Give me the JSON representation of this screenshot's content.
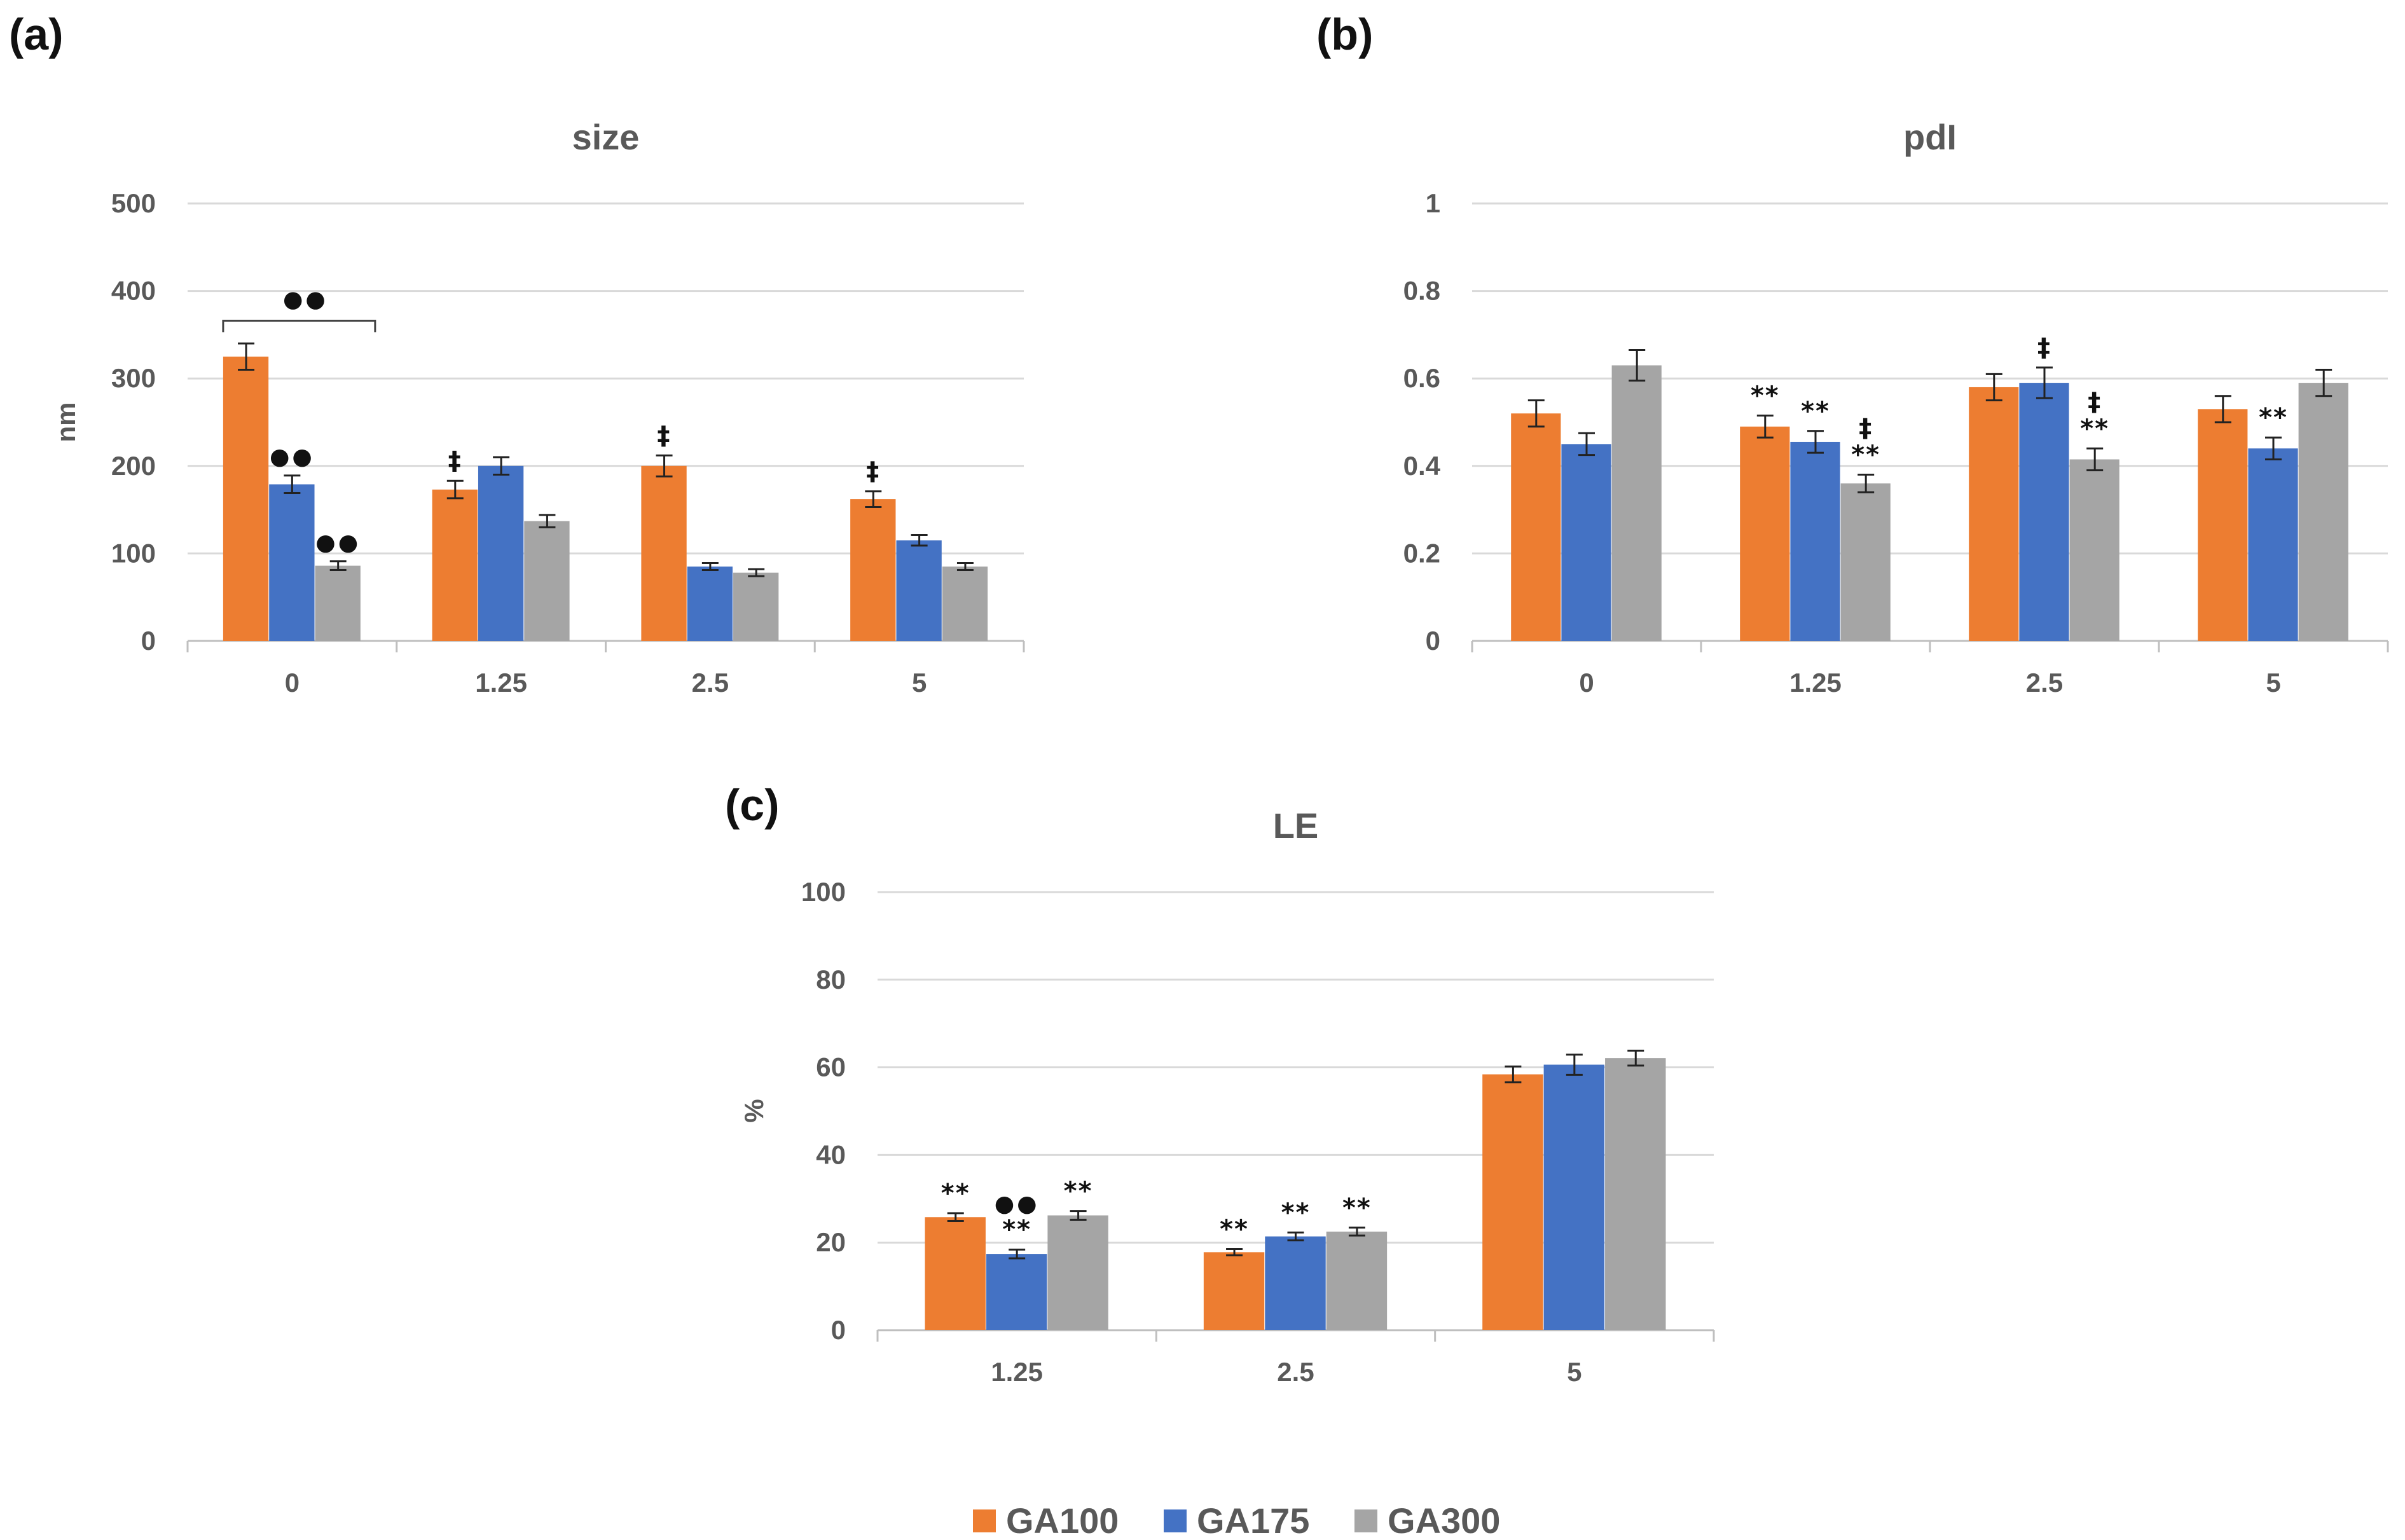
{
  "panels": [
    "(a)",
    "(b)",
    "(c)"
  ],
  "colors": {
    "GA100": "#ED7D31",
    "GA175": "#4472C4",
    "GA300": "#A5A5A5",
    "grid": "#D9D9D9",
    "text": "#595959"
  },
  "legend": [
    {
      "name": "GA100",
      "color": "#ED7D31"
    },
    {
      "name": "GA175",
      "color": "#4472C4"
    },
    {
      "name": "GA300",
      "color": "#A5A5A5"
    }
  ],
  "chart_data": [
    {
      "type": "bar",
      "title": "size",
      "ylabel": "nm",
      "xlabel": "",
      "ylim": [
        0,
        500
      ],
      "yticks": [
        "0",
        "100",
        "200",
        "300",
        "400",
        "500"
      ],
      "categories": [
        "0",
        "1.25",
        "2.5",
        "5"
      ],
      "series": [
        {
          "name": "GA100",
          "values": [
            325,
            173,
            200,
            162
          ],
          "errors": [
            15,
            10,
            12,
            9
          ]
        },
        {
          "name": "GA175",
          "values": [
            179,
            200,
            85,
            115
          ],
          "errors": [
            10,
            10,
            4,
            6
          ]
        },
        {
          "name": "GA300",
          "values": [
            86,
            137,
            78,
            85
          ],
          "errors": [
            5,
            7,
            4,
            4
          ]
        }
      ],
      "annotations": [
        {
          "category": 0,
          "series": 1,
          "text": "●●"
        },
        {
          "category": 0,
          "series": 2,
          "text": "●●"
        },
        {
          "category": 1,
          "series": 0,
          "text": "‡"
        },
        {
          "category": 2,
          "series": 0,
          "text": "‡"
        },
        {
          "category": 3,
          "series": 0,
          "text": "‡"
        }
      ],
      "bracket": {
        "category": 0,
        "text": "●●",
        "y": 366
      },
      "grid": true
    },
    {
      "type": "bar",
      "title": "pdI",
      "ylabel": "",
      "xlabel": "",
      "ylim": [
        0,
        1
      ],
      "yticks": [
        "0",
        "0.2",
        "0.4",
        "0.6",
        "0.8",
        "1"
      ],
      "categories": [
        "0",
        "1.25",
        "2.5",
        "5"
      ],
      "series": [
        {
          "name": "GA100",
          "values": [
            0.52,
            0.49,
            0.58,
            0.53
          ],
          "errors": [
            0.03,
            0.025,
            0.03,
            0.03
          ]
        },
        {
          "name": "GA175",
          "values": [
            0.45,
            0.455,
            0.59,
            0.44
          ],
          "errors": [
            0.025,
            0.025,
            0.035,
            0.025
          ]
        },
        {
          "name": "GA300",
          "values": [
            0.63,
            0.36,
            0.415,
            0.59
          ],
          "errors": [
            0.035,
            0.02,
            0.025,
            0.03
          ]
        }
      ],
      "annotations": [
        {
          "category": 1,
          "series": 0,
          "text": "**"
        },
        {
          "category": 1,
          "series": 1,
          "text": "**"
        },
        {
          "category": 1,
          "series": 2,
          "text": "**"
        },
        {
          "category": 1,
          "series": 2,
          "text": "‡"
        },
        {
          "category": 2,
          "series": 1,
          "text": "‡"
        },
        {
          "category": 2,
          "series": 2,
          "text": "**"
        },
        {
          "category": 2,
          "series": 2,
          "text": "‡"
        },
        {
          "category": 3,
          "series": 1,
          "text": "**"
        }
      ],
      "grid": true
    },
    {
      "type": "bar",
      "title": "LE",
      "ylabel": "%",
      "xlabel": "",
      "ylim": [
        0,
        100
      ],
      "yticks": [
        "0",
        "20",
        "40",
        "60",
        "80",
        "100"
      ],
      "categories": [
        "1.25",
        "2.5",
        "5"
      ],
      "series": [
        {
          "name": "GA100",
          "values": [
            25.8,
            17.8,
            58.4
          ],
          "errors": [
            0.9,
            0.7,
            1.8
          ]
        },
        {
          "name": "GA175",
          "values": [
            17.4,
            21.4,
            60.6
          ],
          "errors": [
            1.0,
            0.9,
            2.3
          ]
        },
        {
          "name": "GA300",
          "values": [
            26.2,
            22.5,
            62.1
          ],
          "errors": [
            1.0,
            0.9,
            1.7
          ]
        }
      ],
      "annotations": [
        {
          "category": 0,
          "series": 0,
          "text": "**"
        },
        {
          "category": 0,
          "series": 1,
          "text": "**"
        },
        {
          "category": 0,
          "series": 1,
          "text": "●●"
        },
        {
          "category": 0,
          "series": 2,
          "text": "**"
        },
        {
          "category": 1,
          "series": 0,
          "text": "**"
        },
        {
          "category": 1,
          "series": 1,
          "text": "**"
        },
        {
          "category": 1,
          "series": 2,
          "text": "**"
        }
      ],
      "grid": true
    }
  ]
}
